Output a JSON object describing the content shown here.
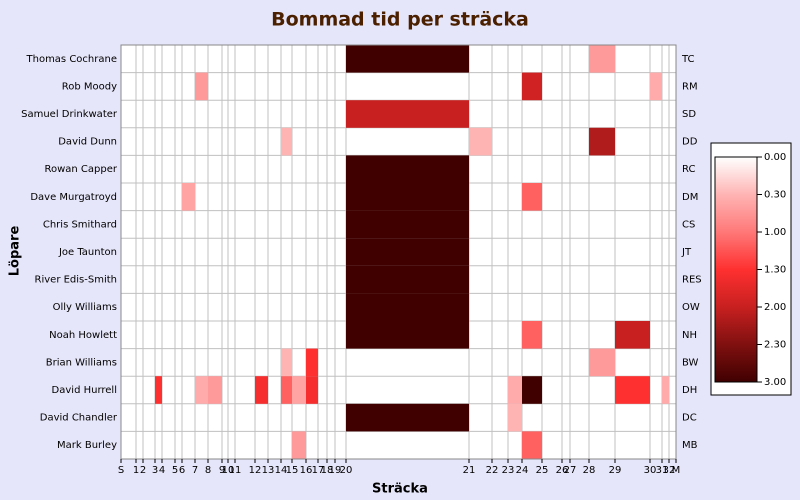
{
  "chart_data": {
    "type": "heatmap",
    "title": "Bommad tid per sträcka",
    "x_label": "Sträcka",
    "y_label": "Löpare",
    "categories": [
      "Thomas Cochrane",
      "Rob Moody",
      "Samuel Drinkwater",
      "David Dunn",
      "Rowan Capper",
      "Dave Murgatroyd",
      "Chris Smithard",
      "Joe Taunton",
      "River Edis-Smith",
      "Olly Williams",
      "Noah Howlett",
      "Brian Williams",
      "David Hurrell",
      "David Chandler",
      "Mark Burley"
    ],
    "row_codes": [
      "TC",
      "RM",
      "SD",
      "DD",
      "RC",
      "DM",
      "CS",
      "JT",
      "RES",
      "OW",
      "NH",
      "BW",
      "DH",
      "DC",
      "MB"
    ],
    "xlim": [
      0,
      555
    ],
    "xticks": [
      {
        "value": 0,
        "label": "S"
      },
      {
        "value": 15,
        "label": "1"
      },
      {
        "value": 22,
        "label": "2"
      },
      {
        "value": 34,
        "label": "3"
      },
      {
        "value": 41,
        "label": "4"
      },
      {
        "value": 54,
        "label": "5"
      },
      {
        "value": 61,
        "label": "6"
      },
      {
        "value": 74,
        "label": "7"
      },
      {
        "value": 87,
        "label": "8"
      },
      {
        "value": 101,
        "label": "9"
      },
      {
        "value": 107,
        "label": "10"
      },
      {
        "value": 114,
        "label": "11"
      },
      {
        "value": 134,
        "label": "12"
      },
      {
        "value": 147,
        "label": "13"
      },
      {
        "value": 160,
        "label": "14"
      },
      {
        "value": 171,
        "label": "15"
      },
      {
        "value": 185,
        "label": "16"
      },
      {
        "value": 197,
        "label": "17"
      },
      {
        "value": 206,
        "label": "18"
      },
      {
        "value": 214,
        "label": "19"
      },
      {
        "value": 225,
        "label": "20"
      },
      {
        "value": 348,
        "label": "21"
      },
      {
        "value": 371,
        "label": "22"
      },
      {
        "value": 387,
        "label": "23"
      },
      {
        "value": 401,
        "label": "24"
      },
      {
        "value": 421,
        "label": "25"
      },
      {
        "value": 441,
        "label": "26"
      },
      {
        "value": 449,
        "label": "27"
      },
      {
        "value": 468,
        "label": "28"
      },
      {
        "value": 494,
        "label": "29"
      },
      {
        "value": 529,
        "label": "30"
      },
      {
        "value": 541,
        "label": "31"
      },
      {
        "value": 548,
        "label": "32"
      },
      {
        "value": 555,
        "label": "M"
      }
    ],
    "values": [
      [
        0,
        0,
        0,
        0,
        0,
        0,
        0,
        0,
        0,
        0,
        0,
        0,
        0,
        0,
        0,
        0,
        0,
        0,
        0,
        0,
        3,
        0,
        0,
        0,
        0,
        0,
        0,
        0,
        0.6,
        0,
        0,
        0,
        0
      ],
      [
        0,
        0,
        0,
        0,
        0,
        0,
        0,
        0.6,
        0,
        0,
        0,
        0,
        0,
        0,
        0,
        0,
        0,
        0,
        0,
        0,
        0,
        0,
        0,
        0,
        1.9,
        0,
        0,
        0,
        0,
        0,
        0.4,
        0,
        0
      ],
      [
        0,
        0,
        0,
        0,
        0,
        0,
        0,
        0,
        0,
        0,
        0,
        0,
        0,
        0,
        0,
        0,
        0,
        0,
        0,
        0,
        2,
        0,
        0,
        0,
        0,
        0,
        0,
        0,
        0,
        0,
        0,
        0,
        0
      ],
      [
        0,
        0,
        0,
        0,
        0,
        0,
        0,
        0,
        0,
        0,
        0,
        0,
        0,
        0,
        0.3,
        0,
        0,
        0,
        0,
        0,
        0,
        0.3,
        0,
        0,
        0,
        0,
        0,
        0,
        2.1,
        0,
        0,
        0,
        0
      ],
      [
        0,
        0,
        0,
        0,
        0,
        0,
        0,
        0,
        0,
        0,
        0,
        0,
        0,
        0,
        0,
        0,
        0,
        0,
        0,
        0,
        3,
        0,
        0,
        0,
        0,
        0,
        0,
        0,
        0,
        0,
        0,
        0,
        0
      ],
      [
        0,
        0,
        0,
        0,
        0,
        0,
        0.5,
        0,
        0,
        0,
        0,
        0,
        0,
        0,
        0,
        0,
        0,
        0,
        0,
        0,
        3,
        0,
        0,
        0,
        1.1,
        0,
        0,
        0,
        0,
        0,
        0,
        0,
        0
      ],
      [
        0,
        0,
        0,
        0,
        0,
        0,
        0,
        0,
        0,
        0,
        0,
        0,
        0,
        0,
        0,
        0,
        0,
        0,
        0,
        0,
        3,
        0,
        0,
        0,
        0,
        0,
        0,
        0,
        0,
        0,
        0,
        0,
        0
      ],
      [
        0,
        0,
        0,
        0,
        0,
        0,
        0,
        0,
        0,
        0,
        0,
        0,
        0,
        0,
        0,
        0,
        0,
        0,
        0,
        0,
        3,
        0,
        0,
        0,
        0,
        0,
        0,
        0,
        0,
        0,
        0,
        0,
        0
      ],
      [
        0,
        0,
        0,
        0,
        0,
        0,
        0,
        0,
        0,
        0,
        0,
        0,
        0,
        0,
        0,
        0,
        0,
        0,
        0,
        0,
        3,
        0,
        0,
        0,
        0,
        0,
        0,
        0,
        0,
        0,
        0,
        0,
        0
      ],
      [
        0,
        0,
        0,
        0,
        0,
        0,
        0,
        0,
        0,
        0,
        0,
        0,
        0,
        0,
        0,
        0,
        0,
        0,
        0,
        0,
        3,
        0,
        0,
        0,
        0,
        0,
        0,
        0,
        0,
        0,
        0,
        0,
        0
      ],
      [
        0,
        0,
        0,
        0,
        0,
        0,
        0,
        0,
        0,
        0,
        0,
        0,
        0,
        0,
        0,
        0,
        0,
        0,
        0,
        0,
        3,
        0,
        0,
        0,
        1.1,
        0,
        0,
        0,
        0,
        2,
        0,
        0,
        0
      ],
      [
        0,
        0,
        0,
        0,
        0,
        0,
        0,
        0,
        0,
        0,
        0,
        0,
        0,
        0,
        0.3,
        0,
        1.3,
        0,
        0,
        0,
        0,
        0,
        0,
        0,
        0,
        0,
        0,
        0,
        0.6,
        0,
        0,
        0,
        0
      ],
      [
        0,
        0,
        0,
        1.3,
        0,
        0,
        0,
        0.4,
        0.6,
        0,
        0,
        0,
        1.4,
        0,
        1.1,
        0.5,
        1.4,
        0,
        0,
        0,
        0,
        0,
        0,
        0.4,
        3,
        0,
        0,
        0,
        0,
        1.3,
        0,
        0.4,
        0
      ],
      [
        0,
        0,
        0,
        0,
        0,
        0,
        0,
        0,
        0,
        0,
        0,
        0,
        0,
        0,
        0,
        0,
        0,
        0,
        0,
        0,
        3,
        0,
        0,
        0.3,
        0,
        0,
        0,
        0,
        0,
        0,
        0,
        0,
        0
      ],
      [
        0,
        0,
        0,
        0,
        0,
        0,
        0,
        0,
        0,
        0,
        0,
        0,
        0,
        0,
        0,
        0.6,
        0,
        0,
        0,
        0,
        0,
        0,
        0,
        0,
        1.1,
        0,
        0,
        0,
        0,
        0,
        0,
        0,
        0
      ]
    ],
    "colorbar": {
      "ticks": [
        {
          "value": 0,
          "label": "0.00"
        },
        {
          "value": 0.3,
          "label": "0.30"
        },
        {
          "value": 1,
          "label": "1.00"
        },
        {
          "value": 1.3,
          "label": "1.30"
        },
        {
          "value": 2,
          "label": "2.00"
        },
        {
          "value": 2.3,
          "label": "2.30"
        },
        {
          "value": 3,
          "label": "3.00"
        }
      ],
      "colors": [
        "#ffffff",
        "#ffb4b4",
        "#ff7878",
        "#ff3030",
        "#c82020",
        "#801010",
        "#400000"
      ]
    },
    "grid": true
  }
}
